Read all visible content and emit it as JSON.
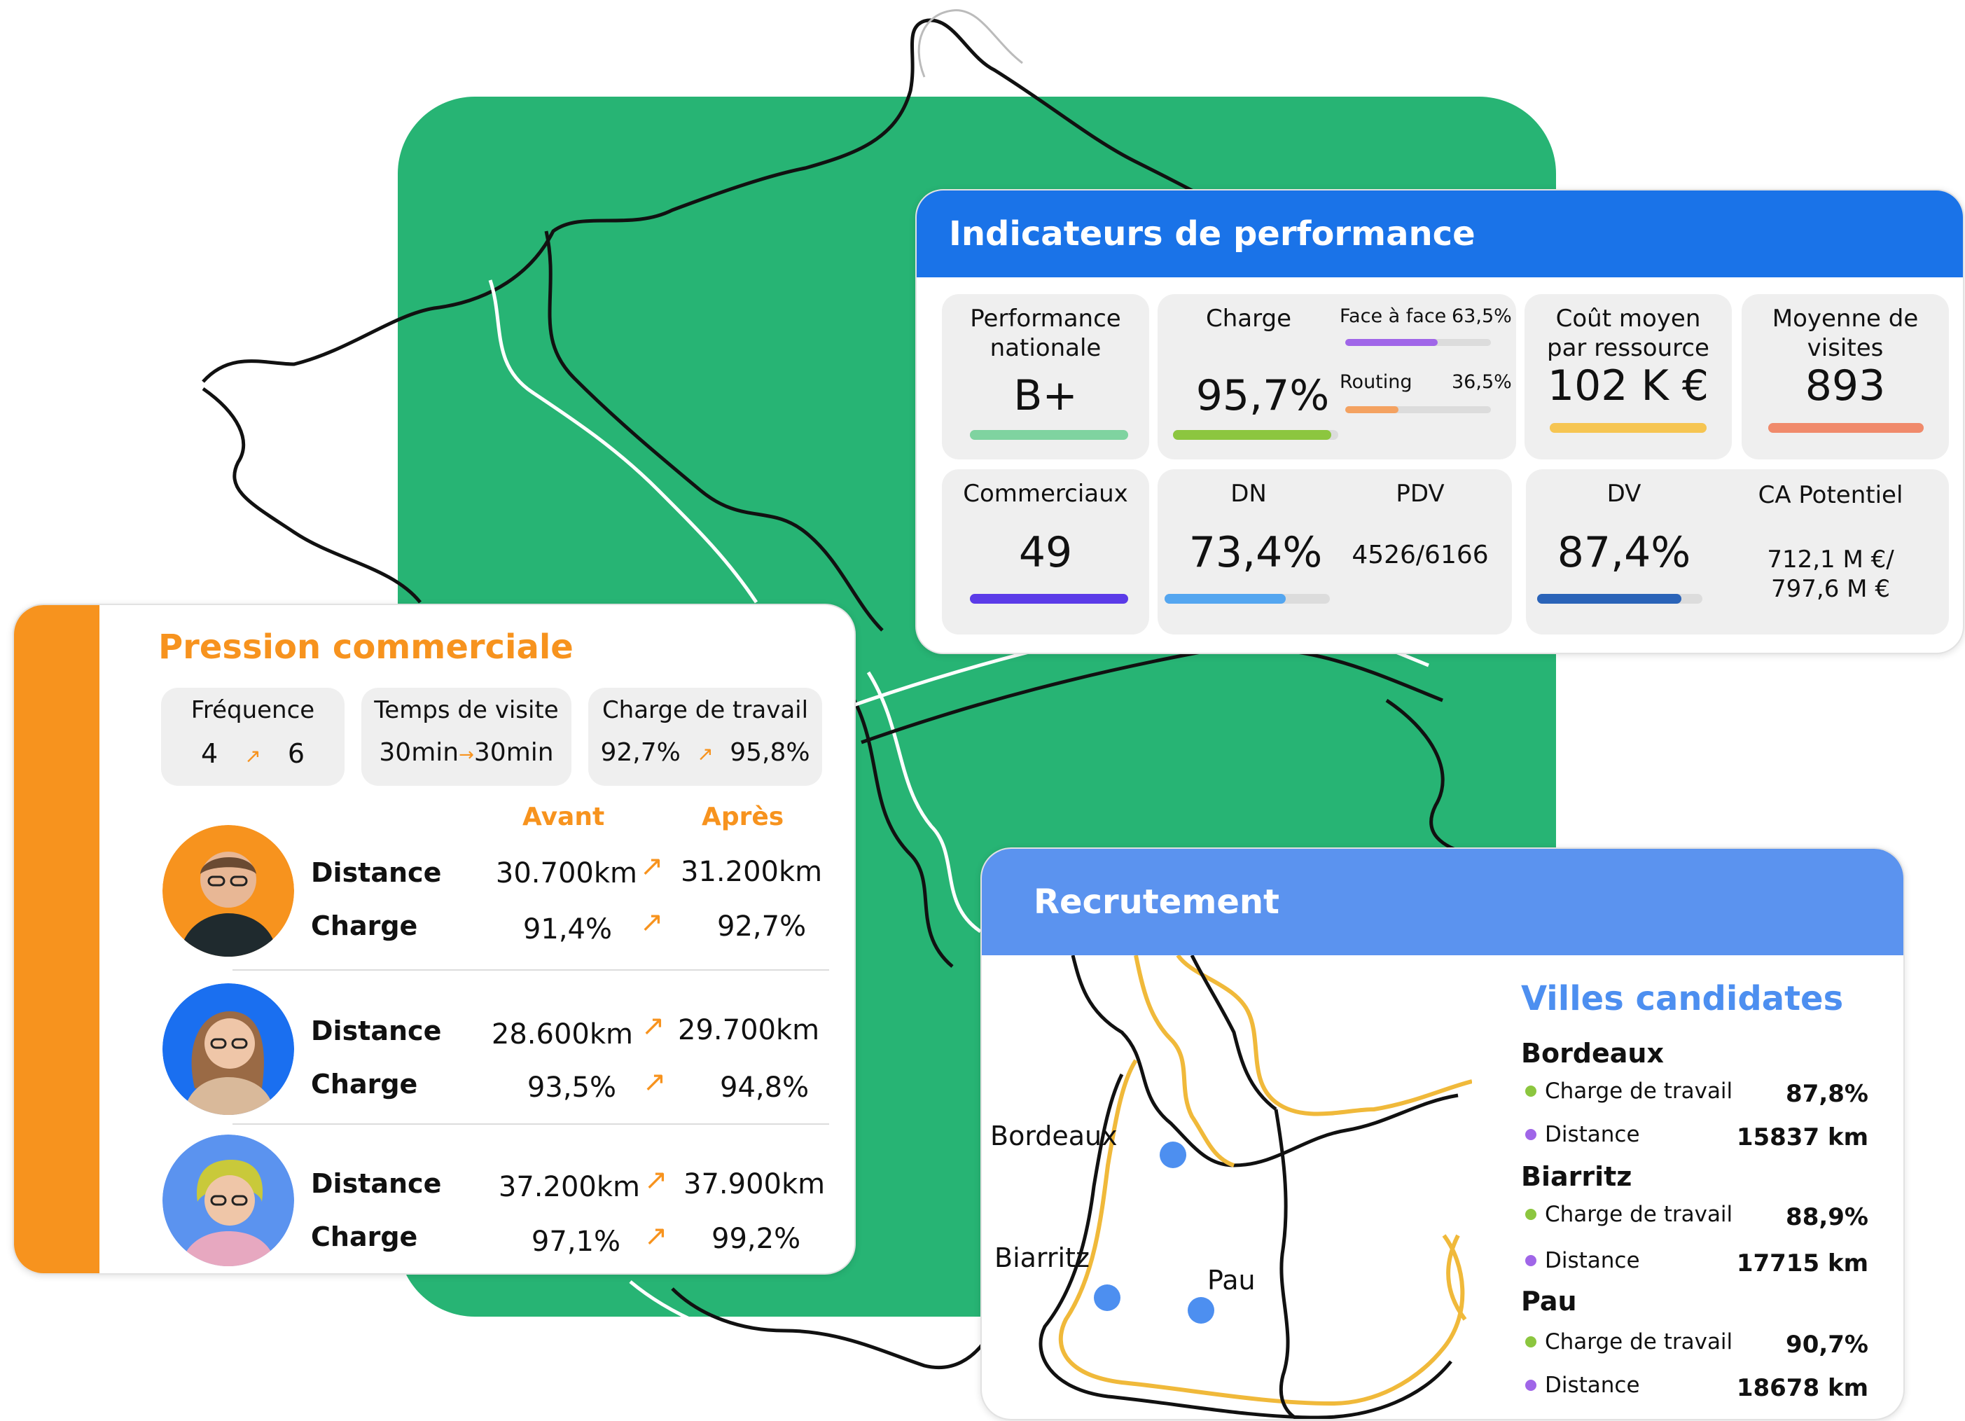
{
  "kpi": {
    "title": "Indicateurs de performance",
    "performance": {
      "label": "Performance nationale",
      "value": "B+",
      "color": "#7fd3a0",
      "fill": 1.0
    },
    "charge": {
      "label": "Charge",
      "value": "95,7%",
      "color": "#8cc63f",
      "fill": 0.957,
      "face": {
        "label": "Face à face",
        "value": "63,5%",
        "color": "#a066e8",
        "fill": 0.635
      },
      "routing": {
        "label": "Routing",
        "value": "36,5%",
        "color": "#f4a261",
        "fill": 0.365
      }
    },
    "cout": {
      "label": "Coût moyen par ressource",
      "value": "102 K €",
      "color": "#f6c552",
      "fill": 1.0
    },
    "visites": {
      "label": "Moyenne de visites",
      "value": "893",
      "color": "#f08a6b",
      "fill": 1.0
    },
    "commerciaux": {
      "label": "Commerciaux",
      "value": "49",
      "color": "#5b3be8",
      "fill": 1.0
    },
    "dn": {
      "label": "DN",
      "value": "73,4%",
      "color": "#54a6f0",
      "fill": 0.734
    },
    "pdv": {
      "label": "PDV",
      "value": "4526/6166"
    },
    "dv": {
      "label": "DV",
      "value": "87,4%",
      "color": "#2a63b8",
      "fill": 0.874
    },
    "ca": {
      "label": "CA Potentiel",
      "value_line1": "712,1 M €/",
      "value_line2": "797,6 M €"
    }
  },
  "pression": {
    "title": "Pression commerciale",
    "frequence": {
      "label": "Fréquence",
      "before": "4",
      "after": "6"
    },
    "temps": {
      "label": "Temps de visite",
      "before": "30min",
      "after": "30min"
    },
    "travail": {
      "label": "Charge de travail",
      "before": "92,7%",
      "after": "95,8%"
    },
    "col_avant": "Avant",
    "col_apres": "Après",
    "arrow": "↗",
    "small_arrow": "→",
    "rows": [
      {
        "distance_label": "Distance",
        "distance_before": "30.700km",
        "distance_after": "31.200km",
        "charge_label": "Charge",
        "charge_before": "91,4%",
        "charge_after": "92,7%",
        "avatar_bg": "#f7931e"
      },
      {
        "distance_label": "Distance",
        "distance_before": "28.600km",
        "distance_after": "29.700km",
        "charge_label": "Charge",
        "charge_before": "93,5%",
        "charge_after": "94,8%",
        "avatar_bg": "#1a6ff0"
      },
      {
        "distance_label": "Distance",
        "distance_before": "37.200km",
        "distance_after": "37.900km",
        "charge_label": "Charge",
        "charge_before": "97,1%",
        "charge_after": "99,2%",
        "avatar_bg": "#5b93ef"
      }
    ]
  },
  "recrutement": {
    "title": "Recrutement",
    "map_labels": {
      "bordeaux": "Bordeaux",
      "biarritz": "Biarritz",
      "pau": "Pau"
    },
    "villes_title": "Villes candidates",
    "metric_charge_color": "#8cc63f",
    "metric_distance_color": "#a066e8",
    "villes": [
      {
        "name": "Bordeaux",
        "charge_label": "Charge de travail",
        "charge": "87,8%",
        "distance_label": "Distance",
        "distance": "15837 km"
      },
      {
        "name": "Biarritz",
        "charge_label": "Charge de travail",
        "charge": "88,9%",
        "distance_label": "Distance",
        "distance": "17715 km"
      },
      {
        "name": "Pau",
        "charge_label": "Charge de travail",
        "charge": "90,7%",
        "distance_label": "Distance",
        "distance": "18678 km"
      }
    ]
  }
}
